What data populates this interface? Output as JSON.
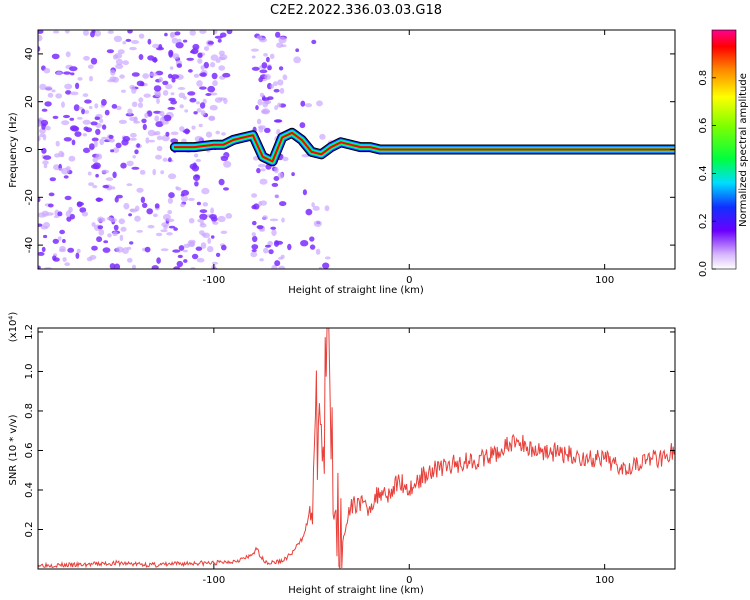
{
  "figure_title": "C2E2.2022.336.03.03.G18",
  "colors": {
    "signal_red": "#e8403a",
    "noise_purple": "#7a2cff",
    "noise_light": "#caa6ff",
    "axis": "#000000"
  },
  "chart_data": [
    {
      "type": "heatmap",
      "title": "",
      "xlabel": "Height of straight line (km)",
      "ylabel": "Frequency (Hz)",
      "xlim": [
        -190,
        136
      ],
      "ylim": [
        -50,
        50
      ],
      "xticks": [
        -100,
        0,
        100
      ],
      "yticks": [
        -40,
        -20,
        0,
        20,
        40
      ],
      "xtick_labels": [
        "-100",
        "0",
        "100"
      ],
      "ytick_labels": [
        "-40",
        "-20",
        "0",
        "20",
        "40"
      ],
      "grid": false,
      "colorbar": {
        "label": "Normalized spectral amplitude",
        "range": [
          0,
          1
        ],
        "ticks": [
          0.0,
          0.2,
          0.4,
          0.6,
          0.8
        ],
        "tick_labels": [
          "0.0",
          "0.2",
          "0.4",
          "0.6",
          "0.8"
        ],
        "colormap": "rainbow"
      },
      "ridge": {
        "x": [
          -120,
          -110,
          -100,
          -95,
          -90,
          -85,
          -80,
          -75,
          -70,
          -65,
          -60,
          -55,
          -50,
          -45,
          -40,
          -35,
          -30,
          -25,
          -20,
          -15,
          -10,
          -5,
          0,
          10,
          50,
          100,
          136
        ],
        "y": [
          1,
          1,
          2,
          2,
          4,
          5,
          6,
          -3,
          -5,
          5,
          7,
          4,
          -1,
          -2,
          1,
          3,
          2,
          1,
          1,
          0,
          0,
          0,
          0,
          0,
          0,
          0,
          0
        ]
      }
    },
    {
      "type": "line",
      "title": "",
      "xlabel": "Height of straight line (km)",
      "ylabel": "SNR (10 * v/v)",
      "y_scale_label": "(x10⁴)",
      "xlim": [
        -190,
        136
      ],
      "ylim": [
        0,
        1.22
      ],
      "xticks": [
        -100,
        0,
        100
      ],
      "yticks": [
        0.2,
        0.4,
        0.6,
        0.8,
        1.0,
        1.2
      ],
      "xtick_labels": [
        "-100",
        "0",
        "100"
      ],
      "ytick_labels": [
        "0.2",
        "0.4",
        "0.6",
        "0.8",
        "1.0",
        "1.2"
      ],
      "grid": false,
      "series": [
        {
          "color": "#e8403a",
          "x": [
            -190,
            -170,
            -150,
            -130,
            -110,
            -100,
            -90,
            -82,
            -78,
            -75,
            -72,
            -65,
            -60,
            -55,
            -50,
            -48,
            -46,
            -44,
            -42,
            -40,
            -38,
            -36,
            -34,
            -30,
            -26,
            -22,
            -18,
            -14,
            -10,
            -5,
            0,
            5,
            10,
            20,
            30,
            40,
            50,
            55,
            60,
            65,
            70,
            80,
            90,
            100,
            110,
            120,
            130,
            136
          ],
          "y": [
            0.02,
            0.02,
            0.03,
            0.02,
            0.03,
            0.03,
            0.04,
            0.06,
            0.1,
            0.05,
            0.03,
            0.04,
            0.08,
            0.15,
            0.3,
            0.6,
            0.85,
            0.5,
            1.22,
            0.7,
            0.4,
            0.2,
            0.15,
            0.3,
            0.35,
            0.3,
            0.35,
            0.4,
            0.38,
            0.45,
            0.4,
            0.45,
            0.5,
            0.52,
            0.55,
            0.56,
            0.62,
            0.65,
            0.62,
            0.6,
            0.6,
            0.58,
            0.56,
            0.55,
            0.52,
            0.55,
            0.57,
            0.6
          ]
        }
      ]
    }
  ]
}
